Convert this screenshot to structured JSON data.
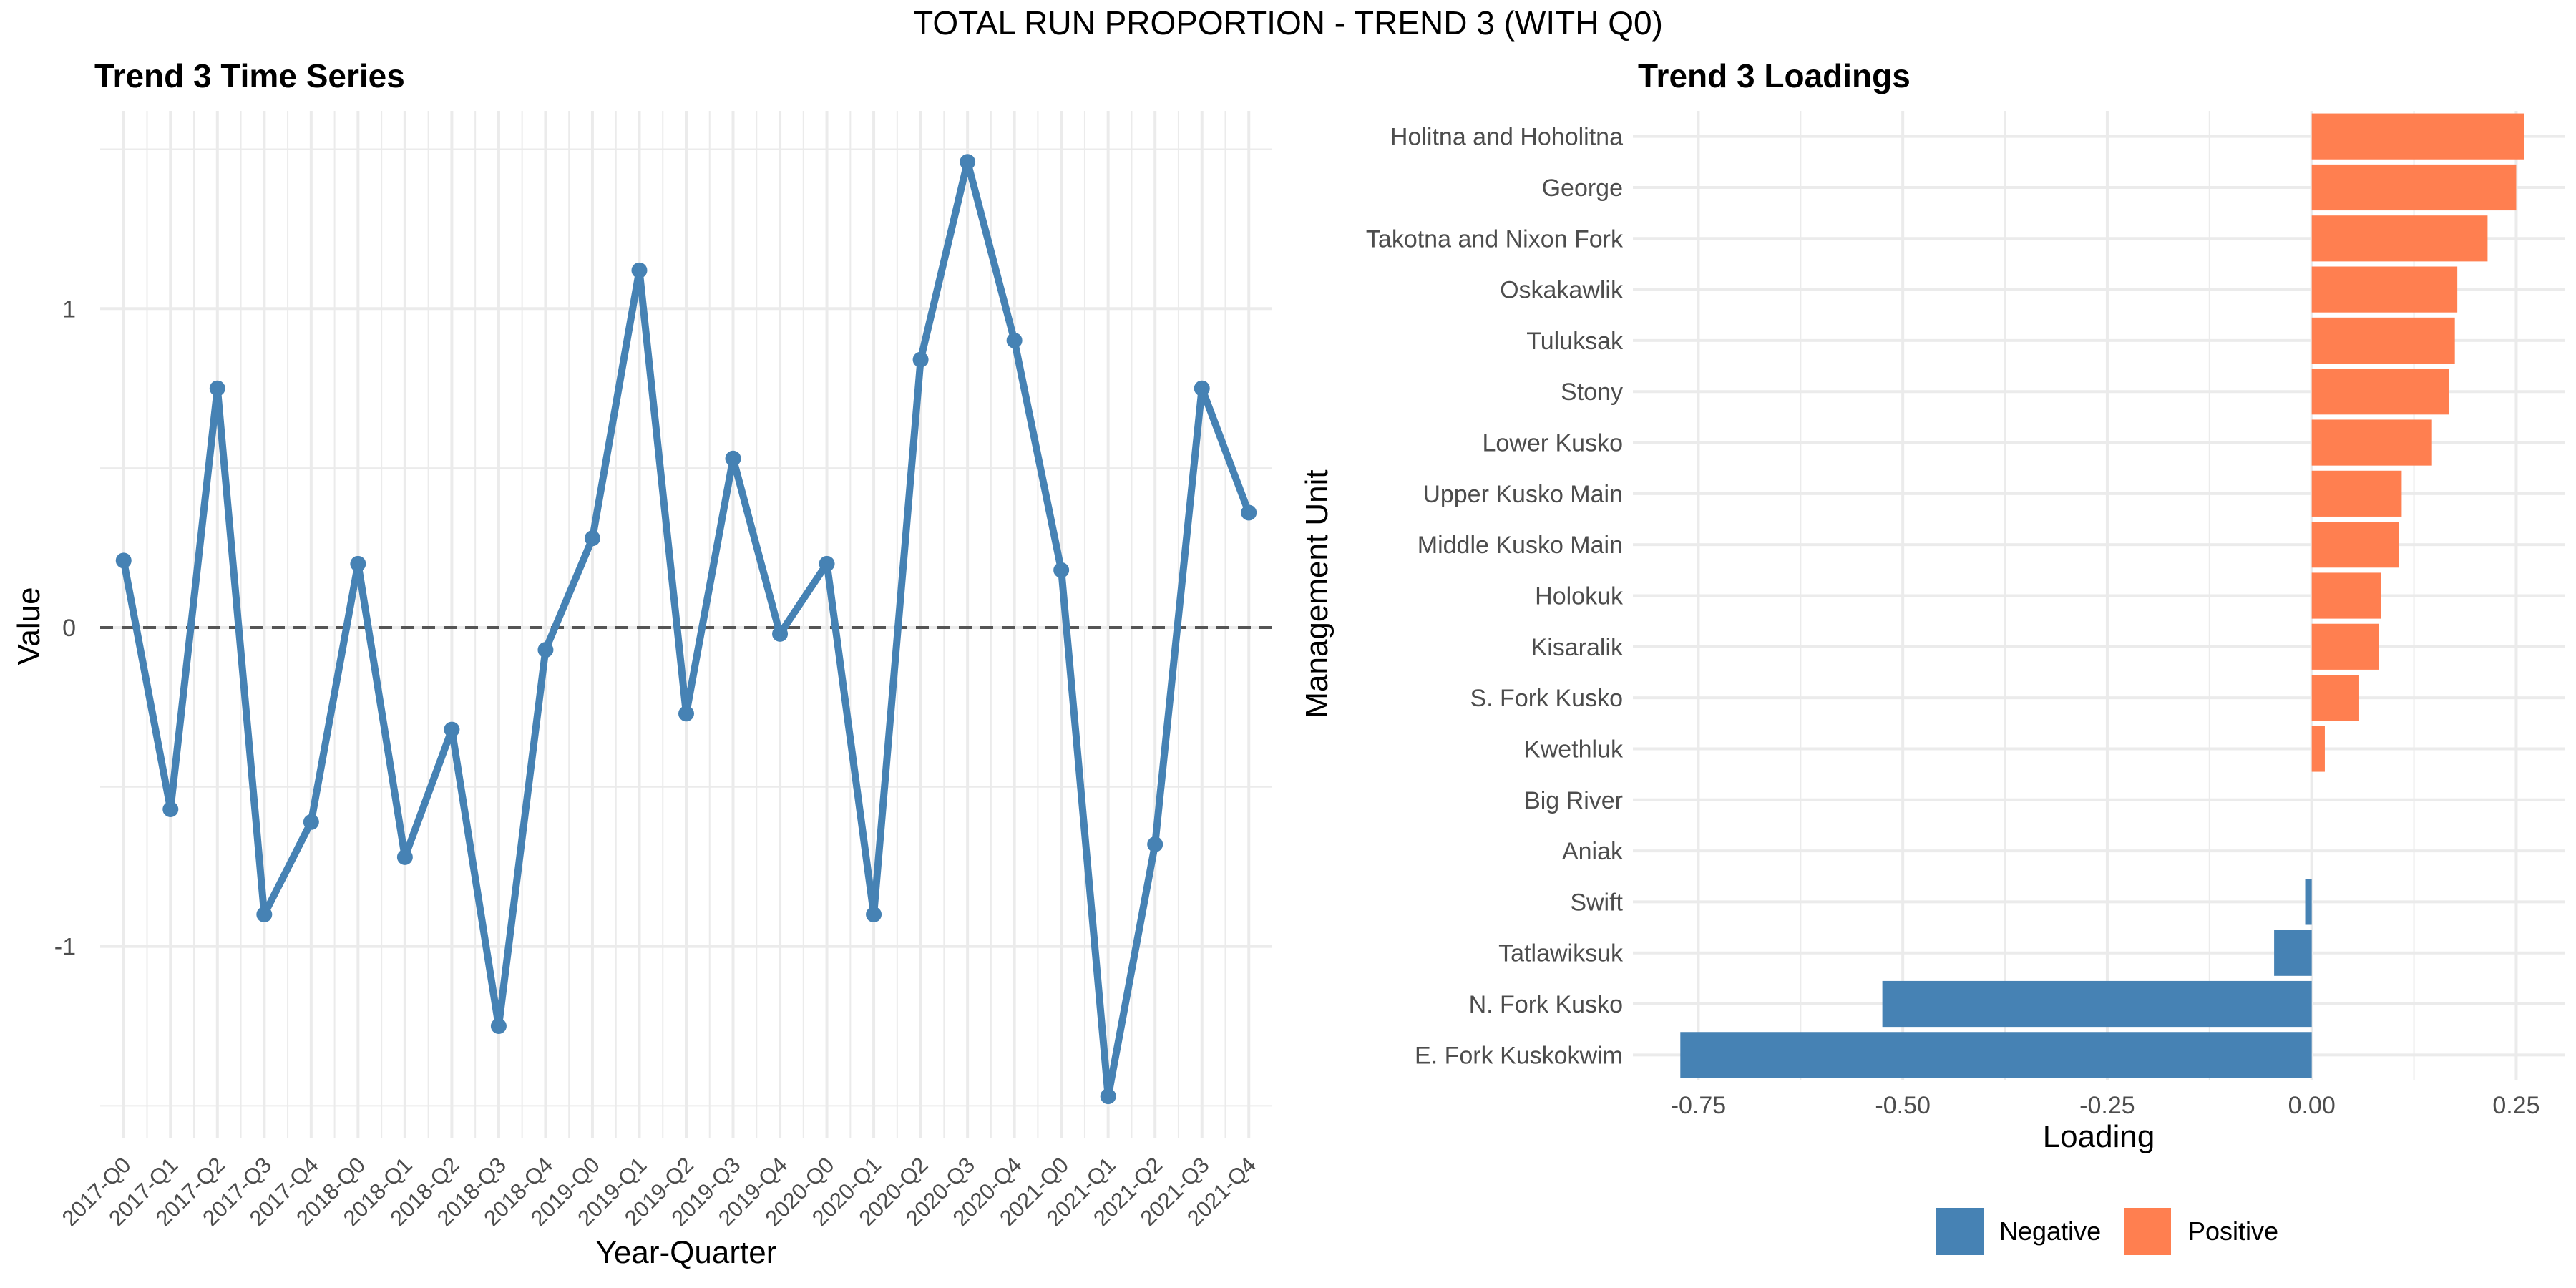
{
  "page_title": "TOTAL RUN PROPORTION - TREND 3 (WITH Q0)",
  "colors": {
    "line": "#4682B4",
    "negative": "#4682B4",
    "positive": "#FF7F50",
    "grid": "#EBEBEB",
    "zero_line": "#555555",
    "axis_text": "#4D4D4D"
  },
  "chart_data": [
    {
      "type": "line",
      "title": "Trend 3 Time Series",
      "xlabel": "Year-Quarter",
      "ylabel": "Value",
      "categories": [
        "2017-Q0",
        "2017-Q1",
        "2017-Q2",
        "2017-Q3",
        "2017-Q4",
        "2018-Q0",
        "2018-Q1",
        "2018-Q2",
        "2018-Q3",
        "2018-Q4",
        "2019-Q0",
        "2019-Q1",
        "2019-Q2",
        "2019-Q3",
        "2019-Q4",
        "2020-Q0",
        "2020-Q1",
        "2020-Q2",
        "2020-Q3",
        "2020-Q4",
        "2021-Q0",
        "2021-Q1",
        "2021-Q2",
        "2021-Q3",
        "2021-Q4"
      ],
      "values": [
        0.21,
        -0.57,
        0.75,
        -0.9,
        -0.61,
        0.2,
        -0.72,
        -0.32,
        -1.25,
        -0.07,
        0.28,
        1.12,
        -0.27,
        0.53,
        -0.02,
        0.2,
        -0.9,
        0.84,
        1.46,
        0.9,
        0.18,
        -1.47,
        -0.68,
        0.75,
        0.36
      ],
      "ylim": [
        -1.6,
        1.62
      ],
      "yticks": [
        -1,
        0,
        1
      ],
      "reference_line": 0,
      "grid": true
    },
    {
      "type": "bar",
      "orientation": "horizontal",
      "title": "Trend 3 Loadings",
      "xlabel": "Loading",
      "ylabel": "Management Unit",
      "categories": [
        "Holitna and Hoholitna",
        "George",
        "Takotna and Nixon Fork",
        "Oskakawlik",
        "Tuluksak",
        "Stony",
        "Lower Kusko",
        "Upper Kusko Main",
        "Middle Kusko Main",
        "Holokuk",
        "Kisaralik",
        "S. Fork Kusko",
        "Kwethluk",
        "Big River",
        "Aniak",
        "Swift",
        "Tatlawiksuk",
        "N. Fork Kusko",
        "E. Fork Kuskokwim"
      ],
      "values": [
        0.26,
        0.25,
        0.215,
        0.178,
        0.175,
        0.168,
        0.147,
        0.11,
        0.107,
        0.085,
        0.082,
        0.058,
        0.016,
        0.0,
        0.0,
        -0.008,
        -0.046,
        -0.525,
        -0.772
      ],
      "xlim": [
        -0.83,
        0.31
      ],
      "xticks": [
        -0.75,
        -0.5,
        -0.25,
        0.0,
        0.25
      ],
      "xtick_labels": [
        "-0.75",
        "-0.50",
        "-0.25",
        "0.00",
        "0.25"
      ],
      "legend": {
        "position": "bottom",
        "entries": [
          "Negative",
          "Positive"
        ]
      },
      "grid": true
    }
  ]
}
